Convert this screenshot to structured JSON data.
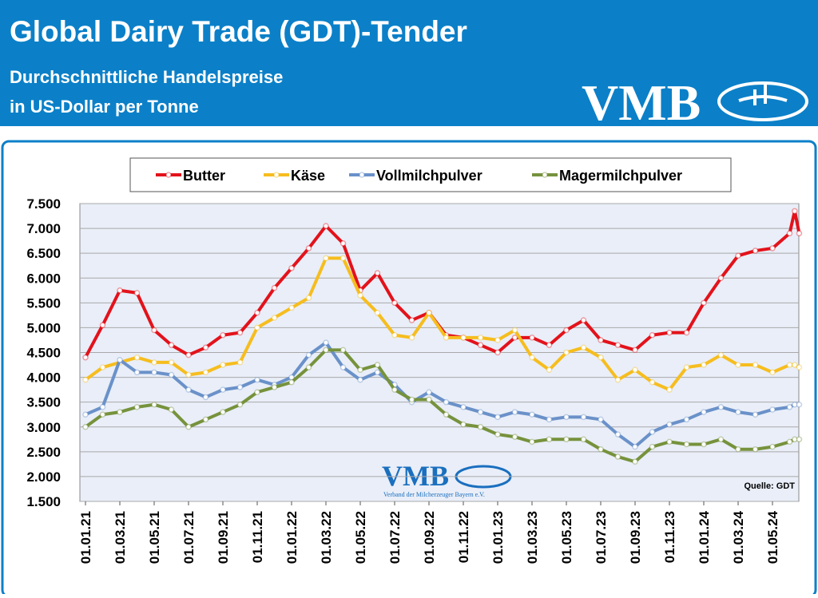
{
  "chart_data": {
    "type": "line",
    "title": "Global Dairy Trade (GDT)-Tender",
    "subtitle": [
      "Durchschnittliche Handelspreise",
      "in US-Dollar per Tonne"
    ],
    "logo": "VMB",
    "watermark": {
      "logo": "VMB",
      "text": "Verband der Milcherzeuger Bayern e.V."
    },
    "source": "Quelle:  GDT",
    "x": [
      "01.01.21",
      "01.02.21",
      "01.03.21",
      "01.04.21",
      "01.05.21",
      "01.06.21",
      "01.07.21",
      "01.08.21",
      "01.09.21",
      "01.10.21",
      "01.11.21",
      "01.12.21",
      "01.01.22",
      "01.02.22",
      "01.03.22",
      "01.04.22",
      "01.05.22",
      "01.06.22",
      "01.07.22",
      "01.08.22",
      "01.09.22",
      "01.10.22",
      "01.11.22",
      "01.12.22",
      "01.01.23",
      "01.02.23",
      "01.03.23",
      "01.04.23",
      "01.05.23",
      "01.06.23",
      "01.07.23",
      "01.08.23",
      "01.09.23",
      "01.10.23",
      "01.11.23",
      "01.12.23",
      "01.01.24",
      "01.02.24",
      "01.03.24",
      "01.04.24",
      "01.05.24",
      "01.06.24",
      "10.06.24",
      "18.06.24"
    ],
    "xticks": [
      "01.01.21",
      "01.03.21",
      "01.05.21",
      "01.07.21",
      "01.09.21",
      "01.11.21",
      "01.01.22",
      "01.03.22",
      "01.05.22",
      "01.07.22",
      "01.09.22",
      "01.11.22",
      "01.01.23",
      "01.03.23",
      "01.05.23",
      "01.07.23",
      "01.09.23",
      "01.11.23",
      "01.01.24",
      "01.03.24",
      "01.05.24"
    ],
    "ylim": [
      1500,
      7500
    ],
    "yticks": [
      {
        "value": 1500,
        "label": "1.500"
      },
      {
        "value": 2000,
        "label": "2.000"
      },
      {
        "value": 2500,
        "label": "2.500"
      },
      {
        "value": 3000,
        "label": "3.000"
      },
      {
        "value": 3500,
        "label": "3.500"
      },
      {
        "value": 4000,
        "label": "4.000"
      },
      {
        "value": 4500,
        "label": "4.500"
      },
      {
        "value": 5000,
        "label": "5.000"
      },
      {
        "value": 5500,
        "label": "5.500"
      },
      {
        "value": 6000,
        "label": "6.000"
      },
      {
        "value": 6500,
        "label": "6.500"
      },
      {
        "value": 7000,
        "label": "7.000"
      },
      {
        "value": 7500,
        "label": "7.500"
      }
    ],
    "grid": true,
    "legend": "top",
    "series": [
      {
        "name": "Butter",
        "color": "#e3121b",
        "values": [
          4400,
          5050,
          5750,
          5700,
          4950,
          4650,
          4450,
          4600,
          4850,
          4900,
          5300,
          5800,
          6200,
          6600,
          7050,
          6700,
          5750,
          6100,
          5500,
          5150,
          5300,
          4850,
          4800,
          4650,
          4500,
          4800,
          4800,
          4650,
          4950,
          5150,
          4750,
          4650,
          4550,
          4850,
          4900,
          4900,
          5500,
          6000,
          6450,
          6550,
          6600,
          6900,
          7350,
          6900
        ]
      },
      {
        "name": "Käse",
        "color": "#f6bd1e",
        "values": [
          3950,
          4200,
          4300,
          4400,
          4300,
          4300,
          4050,
          4100,
          4250,
          4300,
          5000,
          5200,
          5400,
          5600,
          6400,
          6400,
          5650,
          5300,
          4850,
          4800,
          5300,
          4800,
          4800,
          4800,
          4750,
          4950,
          4400,
          4150,
          4500,
          4600,
          4400,
          3950,
          4150,
          3900,
          3750,
          4200,
          4250,
          4450,
          4250,
          4250,
          4100,
          4250,
          4250,
          4200
        ]
      },
      {
        "name": "Vollmilchpulver",
        "color": "#6a91c9",
        "values": [
          3250,
          3400,
          4350,
          4100,
          4100,
          4050,
          3750,
          3600,
          3750,
          3800,
          3950,
          3850,
          4000,
          4450,
          4700,
          4200,
          3950,
          4100,
          3850,
          3500,
          3700,
          3500,
          3400,
          3300,
          3200,
          3300,
          3250,
          3150,
          3200,
          3200,
          3150,
          2850,
          2600,
          2900,
          3050,
          3150,
          3300,
          3400,
          3300,
          3250,
          3350,
          3400,
          3450,
          3450
        ]
      },
      {
        "name": "Magermilchpulver",
        "color": "#76923c",
        "values": [
          3000,
          3250,
          3300,
          3400,
          3450,
          3350,
          3000,
          3150,
          3300,
          3450,
          3700,
          3800,
          3900,
          4200,
          4550,
          4550,
          4150,
          4250,
          3750,
          3550,
          3550,
          3250,
          3050,
          3000,
          2850,
          2800,
          2700,
          2750,
          2750,
          2750,
          2550,
          2400,
          2300,
          2600,
          2700,
          2650,
          2650,
          2750,
          2550,
          2550,
          2600,
          2700,
          2750,
          2750
        ]
      }
    ]
  }
}
